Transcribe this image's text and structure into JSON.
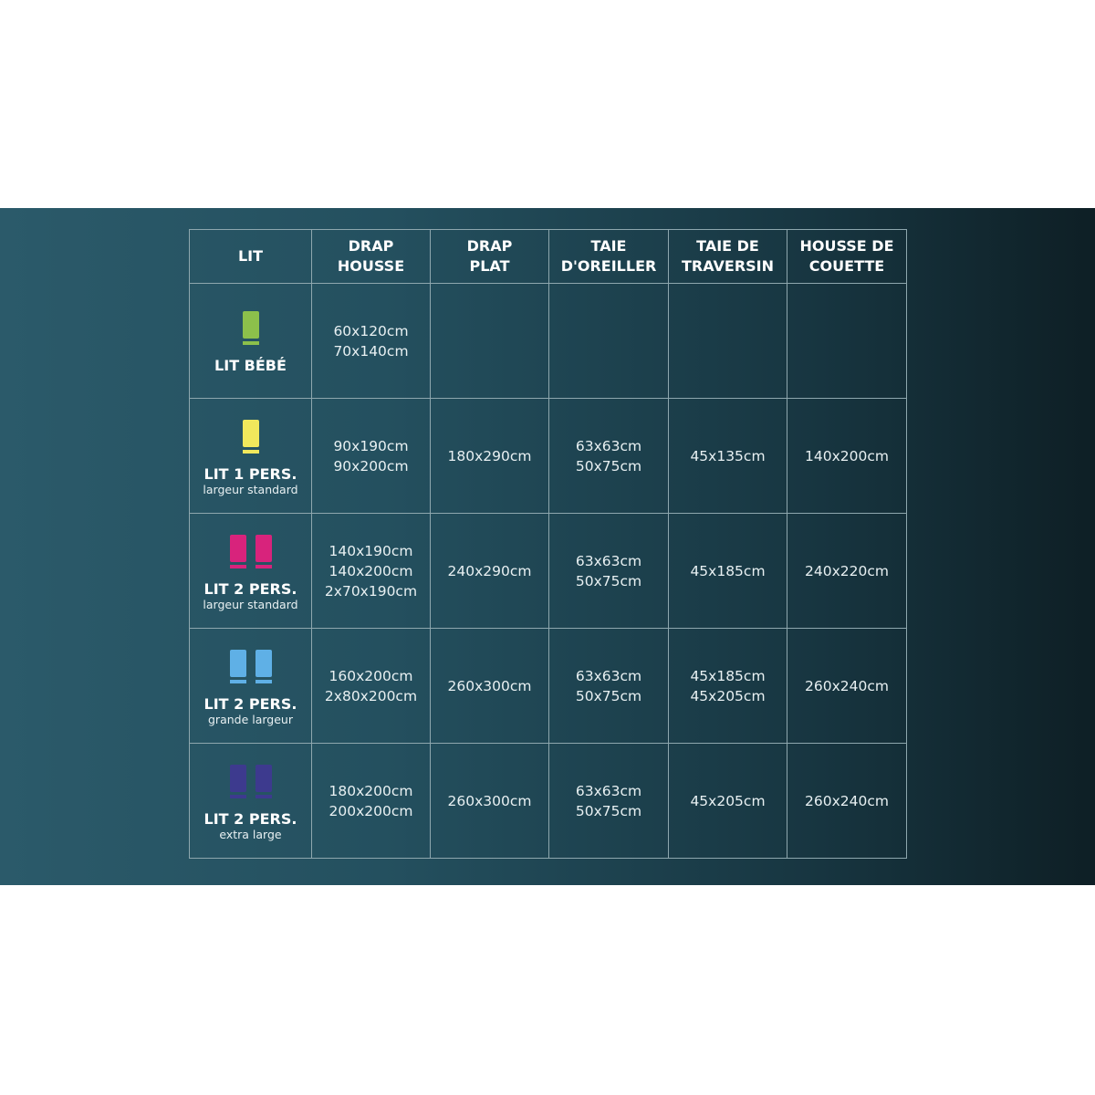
{
  "table": {
    "header": [
      [
        "LIT"
      ],
      [
        "DRAP",
        "HOUSSE"
      ],
      [
        "DRAP",
        "PLAT"
      ],
      [
        "TAIE",
        "D'OREILLER"
      ],
      [
        "TAIE DE",
        "TRAVERSIN"
      ],
      [
        "HOUSSE DE",
        "COUETTE"
      ]
    ],
    "rows": [
      {
        "bed": "LIT BÉBÉ",
        "cells": [
          [
            "60x120cm",
            "70x140cm"
          ],
          [],
          [],
          [],
          []
        ]
      },
      {
        "bed": "LIT 1 PERS.",
        "note": "largeur standard",
        "cells": [
          [
            "90x190cm",
            "90x200cm"
          ],
          [
            "180x290cm"
          ],
          [
            "63x63cm",
            "50x75cm"
          ],
          [
            "45x135cm"
          ],
          [
            "140x200cm"
          ]
        ]
      },
      {
        "bed": "LIT 2 PERS.",
        "note": "largeur standard",
        "cells": [
          [
            "140x190cm",
            "140x200cm",
            "2x70x190cm"
          ],
          [
            "240x290cm"
          ],
          [
            "63x63cm",
            "50x75cm"
          ],
          [
            "45x185cm"
          ],
          [
            "240x220cm"
          ]
        ]
      },
      {
        "bed": "LIT 2 PERS.",
        "note": "grande largeur",
        "cells": [
          [
            "160x200cm",
            "2x80x200cm"
          ],
          [
            "260x300cm"
          ],
          [
            "63x63cm",
            "50x75cm"
          ],
          [
            "45x185cm",
            "45x205cm"
          ],
          [
            "260x240cm"
          ]
        ]
      },
      {
        "bed": "LIT 2 PERS.",
        "note": "extra large",
        "cells": [
          [
            "180x200cm",
            "200x200cm"
          ],
          [
            "260x300cm"
          ],
          [
            "63x63cm",
            "50x75cm"
          ],
          [
            "45x205cm"
          ],
          [
            "260x240cm"
          ]
        ]
      }
    ]
  }
}
